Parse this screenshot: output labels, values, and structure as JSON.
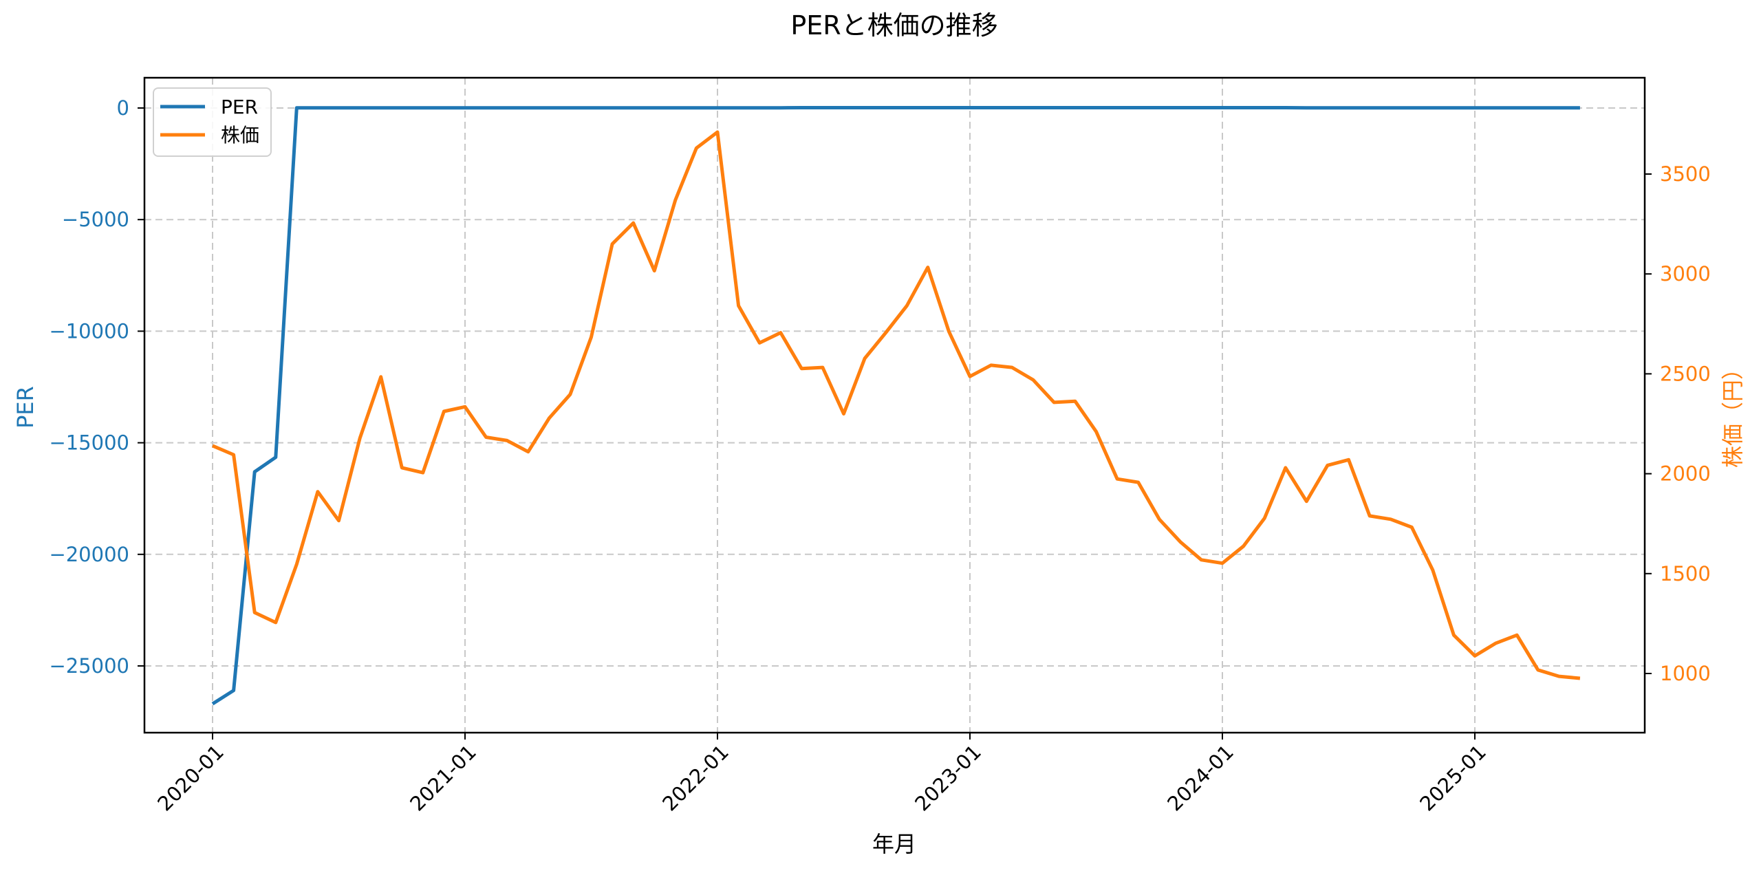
{
  "chart_data": {
    "type": "line",
    "title": "PERと株価の推移",
    "xlabel": "年月",
    "ylabel": "PER",
    "ylabel_right": "株価（円）",
    "x_tick_labels": [
      "2020-01",
      "2021-01",
      "2022-01",
      "2023-01",
      "2024-01",
      "2025-01"
    ],
    "y_left_ticks": [
      0,
      -5000,
      -10000,
      -15000,
      -20000,
      -25000
    ],
    "y_left_tick_labels": [
      "0",
      "−5000",
      "−10000",
      "−15000",
      "−20000",
      "−25000"
    ],
    "y_right_ticks": [
      1000,
      1500,
      2000,
      2500,
      3000,
      3500
    ],
    "y_right_tick_labels": [
      "1000",
      "1500",
      "2000",
      "2500",
      "3000",
      "3500"
    ],
    "ylim_left": [
      -28147,
      1340
    ],
    "ylim_right": [
      700,
      3900
    ],
    "grid": true,
    "legend_position": "upper left",
    "colors": {
      "PER": "#1f77b4",
      "株価": "#ff7f0e"
    },
    "x": [
      "2020-01",
      "2020-02",
      "2020-03",
      "2020-04",
      "2020-05",
      "2020-06",
      "2020-07",
      "2020-08",
      "2020-09",
      "2020-10",
      "2020-11",
      "2020-12",
      "2021-01",
      "2021-02",
      "2021-03",
      "2021-04",
      "2021-05",
      "2021-06",
      "2021-07",
      "2021-08",
      "2021-09",
      "2021-10",
      "2021-11",
      "2021-12",
      "2022-01",
      "2022-02",
      "2022-03",
      "2022-04",
      "2022-05",
      "2022-06",
      "2022-07",
      "2022-08",
      "2022-09",
      "2022-10",
      "2022-11",
      "2022-12",
      "2023-01",
      "2023-02",
      "2023-03",
      "2023-04",
      "2023-05",
      "2023-06",
      "2023-07",
      "2023-08",
      "2023-09",
      "2023-10",
      "2023-11",
      "2023-12",
      "2024-01",
      "2024-02",
      "2024-03",
      "2024-04",
      "2024-05",
      "2024-06",
      "2024-07",
      "2024-08",
      "2024-09",
      "2024-10",
      "2024-11",
      "2024-12",
      "2025-01",
      "2025-02",
      "2025-03",
      "2025-04",
      "2025-05",
      "2025-06"
    ],
    "series": [
      {
        "name": "PER",
        "axis": "left",
        "values": [
          -26700,
          -26100,
          -16300,
          -15650,
          10,
          10,
          10,
          10,
          10,
          10,
          10,
          10,
          10,
          10,
          10,
          10,
          10,
          10,
          10,
          10,
          10,
          10,
          10,
          10,
          10,
          10,
          10,
          10,
          15,
          15,
          15,
          15,
          15,
          15,
          15,
          15,
          15,
          15,
          15,
          15,
          15,
          15,
          15,
          15,
          15,
          15,
          15,
          15,
          15,
          15,
          15,
          15,
          10,
          10,
          10,
          10,
          10,
          10,
          10,
          10,
          10,
          10,
          10,
          10,
          10,
          10
        ]
      },
      {
        "name": "株価",
        "axis": "right",
        "values": [
          2140,
          2095,
          1305,
          1255,
          1547,
          1910,
          1765,
          2177,
          2485,
          2030,
          2005,
          2312,
          2335,
          2183,
          2166,
          2110,
          2278,
          2397,
          2684,
          3150,
          3255,
          3016,
          3370,
          3630,
          3710,
          2841,
          2655,
          2706,
          2526,
          2532,
          2300,
          2577,
          2706,
          2841,
          3033,
          2712,
          2487,
          2543,
          2532,
          2470,
          2357,
          2363,
          2211,
          1974,
          1957,
          1772,
          1659,
          1569,
          1552,
          1637,
          1777,
          2030,
          1862,
          2042,
          2070,
          1789,
          1772,
          1732,
          1518,
          1192,
          1088,
          1152,
          1192,
          1018,
          986,
          976
        ]
      }
    ]
  },
  "legend": {
    "items": [
      {
        "label": "PER",
        "color": "#1f77b4"
      },
      {
        "label": "株価",
        "color": "#ff7f0e"
      }
    ]
  }
}
